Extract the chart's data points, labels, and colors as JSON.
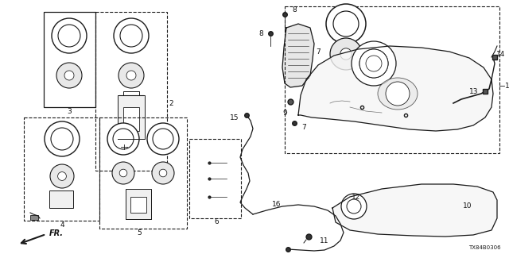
{
  "bg_color": "#ffffff",
  "diagram_code": "TX84B0306",
  "line_color": "#1a1a1a",
  "text_color": "#111111"
}
